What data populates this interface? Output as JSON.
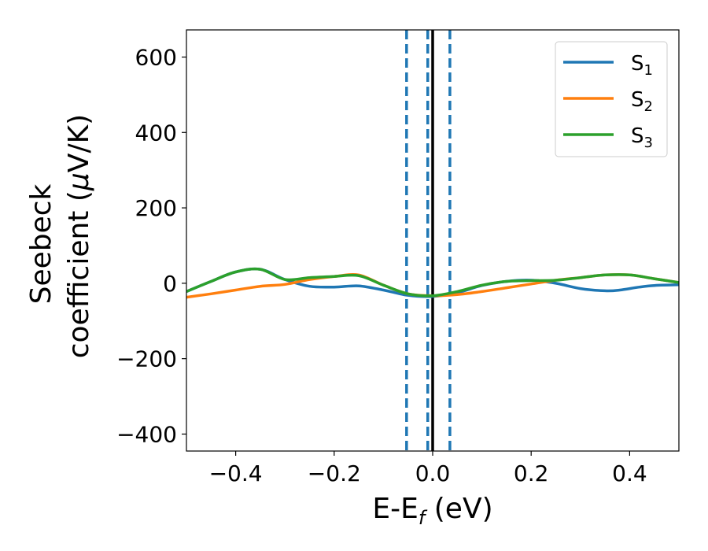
{
  "chart_data": {
    "type": "line",
    "xlabel": {
      "main": "E-E",
      "sub": "f",
      "tail": " (eV)"
    },
    "ylabel": {
      "line1": "Seebeck",
      "line2": "coefficient  (",
      "mu": "μ",
      "line2_tail": "V/K)"
    },
    "xlim": [
      -0.5,
      0.5
    ],
    "ylim": [
      -445,
      672
    ],
    "x_ticks": [
      -0.4,
      -0.2,
      0.0,
      0.2,
      0.4
    ],
    "x_tick_labels": [
      "−0.4",
      "−0.2",
      "0.0",
      "0.2",
      "0.4"
    ],
    "y_ticks": [
      600,
      400,
      200,
      0,
      -200,
      -400
    ],
    "y_tick_labels": [
      "600",
      "400",
      "200",
      "0",
      "−200",
      "−400"
    ],
    "grid": false,
    "legend_position": "top-right",
    "vlines": [
      {
        "x": -0.053,
        "style": "dashed",
        "color": "#1f77b4"
      },
      {
        "x": -0.01,
        "style": "dashed",
        "color": "#1f77b4"
      },
      {
        "x": 0.035,
        "style": "dashed",
        "color": "#1f77b4"
      },
      {
        "x": 0.0,
        "style": "solid",
        "color": "#000000"
      }
    ],
    "series": [
      {
        "name": "S",
        "sub": "1",
        "color": "#1f77b4",
        "x": [
          -0.5,
          -0.45,
          -0.4,
          -0.35,
          -0.3,
          -0.25,
          -0.2,
          -0.15,
          -0.1,
          -0.05,
          0.0,
          0.05,
          0.1,
          0.15,
          0.2,
          0.25,
          0.3,
          0.35,
          0.38,
          0.42,
          0.45,
          0.5
        ],
        "y": [
          -22,
          5,
          30,
          37,
          10,
          -8,
          -10,
          -7,
          -18,
          -32,
          -35,
          -25,
          -6,
          5,
          8,
          0,
          -14,
          -20,
          -18,
          -10,
          -6,
          -4
        ]
      },
      {
        "name": "S",
        "sub": "2",
        "color": "#ff7f0e",
        "x": [
          -0.5,
          -0.45,
          -0.4,
          -0.35,
          -0.3,
          -0.25,
          -0.2,
          -0.15,
          -0.1,
          -0.05,
          0.0,
          0.05,
          0.1,
          0.15,
          0.2,
          0.25,
          0.3,
          0.35,
          0.4,
          0.45,
          0.5
        ],
        "y": [
          -37,
          -28,
          -18,
          -8,
          -3,
          10,
          18,
          22,
          -5,
          -28,
          -33,
          -30,
          -22,
          -12,
          -2,
          8,
          15,
          22,
          22,
          12,
          2
        ]
      },
      {
        "name": "S",
        "sub": "3",
        "color": "#2ca02c",
        "x": [
          -0.5,
          -0.45,
          -0.4,
          -0.35,
          -0.3,
          -0.25,
          -0.2,
          -0.15,
          -0.1,
          -0.05,
          0.0,
          0.05,
          0.1,
          0.15,
          0.2,
          0.25,
          0.3,
          0.35,
          0.4,
          0.45,
          0.5
        ],
        "y": [
          -22,
          5,
          30,
          37,
          10,
          15,
          18,
          20,
          -5,
          -28,
          -33,
          -22,
          -5,
          5,
          7,
          8,
          15,
          22,
          22,
          12,
          2
        ]
      }
    ]
  }
}
